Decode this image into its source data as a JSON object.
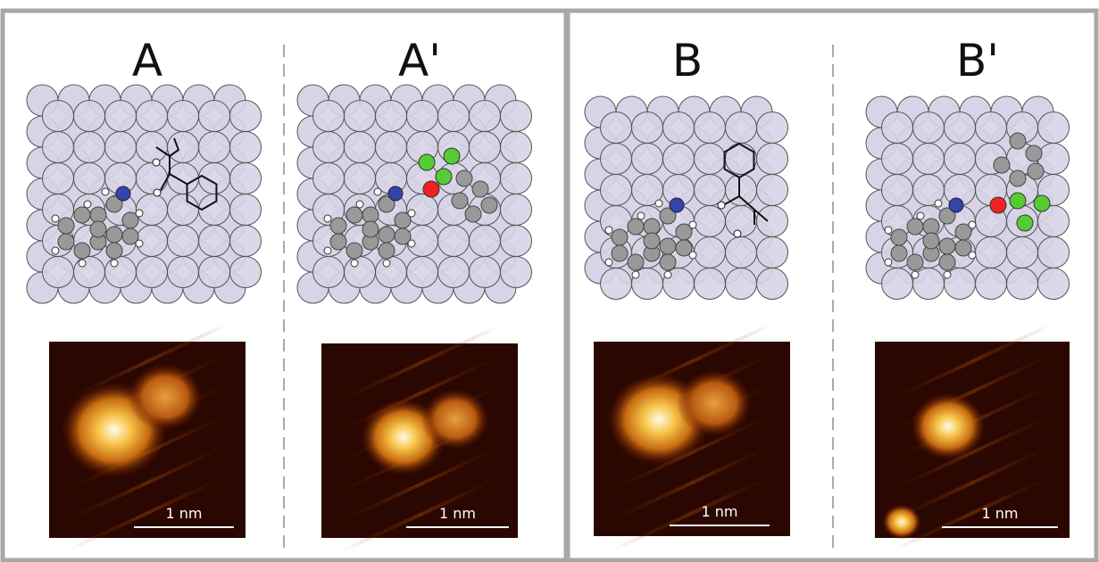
{
  "panels": [
    {
      "label": "A",
      "scale_bar": "1 nm"
    },
    {
      "label": "A'",
      "scale_bar": "1 nm"
    },
    {
      "label": "B",
      "scale_bar": "1 nm"
    },
    {
      "label": "B'",
      "scale_bar": "1 nm"
    }
  ]
}
